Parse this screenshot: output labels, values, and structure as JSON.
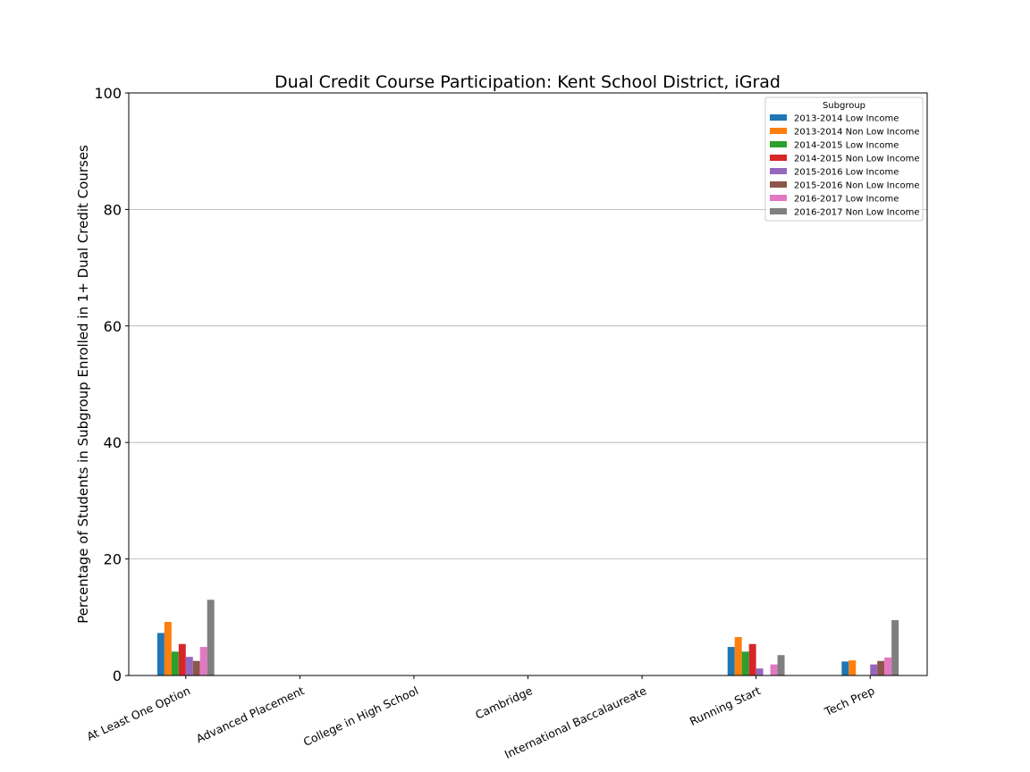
{
  "chart_data": {
    "type": "bar",
    "title": "Dual Credit Course Participation: Kent School District, iGrad",
    "xlabel": "",
    "ylabel": "Percentage of Students in Subgroup Enrolled in 1+ Dual Credit Courses",
    "ylim": [
      0,
      100
    ],
    "yticks": [
      0,
      20,
      40,
      60,
      80,
      100
    ],
    "grid": "y",
    "legend_title": "Subgroup",
    "legend_position": "top-right",
    "categories": [
      "At Least One Option",
      "Advanced Placement",
      "College in High School",
      "Cambridge",
      "International Baccalaureate",
      "Running Start",
      "Tech Prep"
    ],
    "series": [
      {
        "name": "2013-2014 Low Income",
        "color": "#1f77b4",
        "values": [
          7.3,
          0,
          0,
          0,
          0,
          4.9,
          2.4
        ]
      },
      {
        "name": "2013-2014 Non Low Income",
        "color": "#ff7f0e",
        "values": [
          9.2,
          0,
          0,
          0,
          0,
          6.6,
          2.6
        ]
      },
      {
        "name": "2014-2015 Low Income",
        "color": "#2ca02c",
        "values": [
          4.1,
          0,
          0,
          0,
          0,
          4.1,
          0
        ]
      },
      {
        "name": "2014-2015 Non Low Income",
        "color": "#d62728",
        "values": [
          5.4,
          0,
          0,
          0,
          0,
          5.4,
          0
        ]
      },
      {
        "name": "2015-2016 Low Income",
        "color": "#9467bd",
        "values": [
          3.2,
          0,
          0,
          0,
          0,
          1.2,
          1.9
        ]
      },
      {
        "name": "2015-2016 Non Low Income",
        "color": "#8c564b",
        "values": [
          2.5,
          0,
          0,
          0,
          0,
          0,
          2.5
        ]
      },
      {
        "name": "2016-2017 Low Income",
        "color": "#e377c2",
        "values": [
          4.9,
          0,
          0,
          0,
          0,
          1.9,
          3.1
        ]
      },
      {
        "name": "2016-2017 Non Low Income",
        "color": "#7f7f7f",
        "values": [
          13.0,
          0,
          0,
          0,
          0,
          3.5,
          9.5
        ]
      }
    ]
  }
}
